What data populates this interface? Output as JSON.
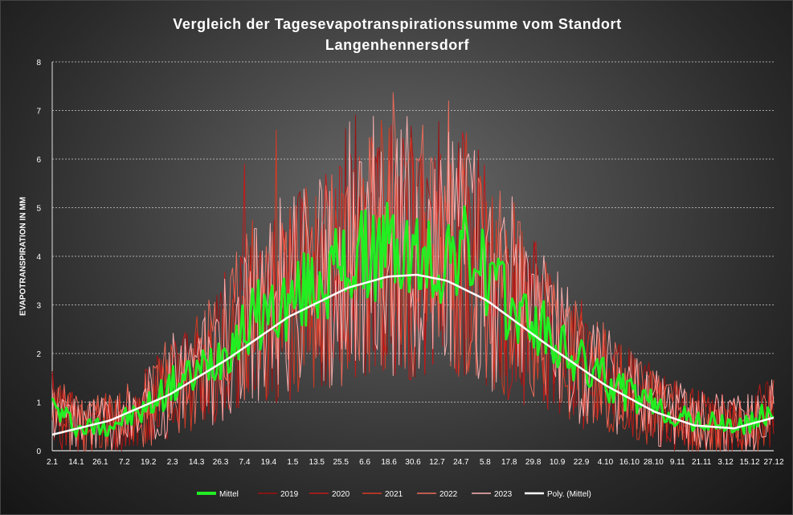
{
  "chart_data": {
    "type": "line",
    "title_lines": [
      "Vergleich der Tagesevapotranspirationssumme vom Standort",
      "Langenhennersdorf"
    ],
    "ylabel": "EVAPOTRANSPIRATION IN MM",
    "xlabel": "",
    "ylim": [
      0,
      8
    ],
    "yticks": [
      "0",
      "1",
      "2",
      "3",
      "4",
      "5",
      "6",
      "7",
      "8"
    ],
    "xticks": [
      "2.1",
      "14.1",
      "26.1",
      "7.2",
      "19.2",
      "2.3",
      "14.3",
      "26.3",
      "7.4",
      "19.4",
      "1.5",
      "13.5",
      "25.5",
      "6.6",
      "18.6",
      "30.6",
      "12.7",
      "24.7",
      "5.8",
      "17.8",
      "29.8",
      "10.9",
      "22.9",
      "4.10",
      "16.10",
      "28.10",
      "9.11",
      "21.11",
      "3.12",
      "15.12",
      "27.12"
    ],
    "grid": "horizontal dotted",
    "legend_position": "bottom",
    "days_range": [
      1,
      365
    ],
    "series": [
      {
        "name": "Mittel",
        "color": "#22ee22",
        "kind": "mean",
        "values": [
          [
            1,
            0.9
          ],
          [
            15,
            0.45
          ],
          [
            30,
            0.55
          ],
          [
            45,
            0.75
          ],
          [
            60,
            1.3
          ],
          [
            75,
            1.6
          ],
          [
            90,
            2.2
          ],
          [
            105,
            2.8
          ],
          [
            120,
            3.0
          ],
          [
            135,
            3.5
          ],
          [
            150,
            3.8
          ],
          [
            160,
            4.0
          ],
          [
            170,
            4.2
          ],
          [
            180,
            4.0
          ],
          [
            195,
            3.8
          ],
          [
            205,
            4.2
          ],
          [
            215,
            3.9
          ],
          [
            230,
            3.0
          ],
          [
            245,
            2.6
          ],
          [
            260,
            2.0
          ],
          [
            275,
            1.6
          ],
          [
            290,
            1.2
          ],
          [
            305,
            0.9
          ],
          [
            320,
            0.65
          ],
          [
            335,
            0.55
          ],
          [
            350,
            0.5
          ],
          [
            365,
            0.8
          ]
        ]
      },
      {
        "name": "2019",
        "color": "#a01010",
        "kind": "daily",
        "seed": 11
      },
      {
        "name": "2020",
        "color": "#c41818",
        "kind": "daily",
        "seed": 23
      },
      {
        "name": "2021",
        "color": "#d83a22",
        "kind": "daily",
        "seed": 37
      },
      {
        "name": "2022",
        "color": "#f06a5a",
        "kind": "daily",
        "seed": 51
      },
      {
        "name": "2023",
        "color": "#ffb3b3",
        "kind": "daily",
        "seed": 67
      },
      {
        "name": "Poly. (Mittel)",
        "color": "#ffffff",
        "kind": "trend",
        "values": [
          [
            1,
            0.33
          ],
          [
            30,
            0.62
          ],
          [
            60,
            1.15
          ],
          [
            90,
            1.9
          ],
          [
            120,
            2.75
          ],
          [
            150,
            3.35
          ],
          [
            170,
            3.58
          ],
          [
            185,
            3.62
          ],
          [
            200,
            3.5
          ],
          [
            220,
            3.1
          ],
          [
            250,
            2.2
          ],
          [
            280,
            1.35
          ],
          [
            305,
            0.8
          ],
          [
            325,
            0.52
          ],
          [
            345,
            0.46
          ],
          [
            365,
            0.68
          ]
        ]
      }
    ],
    "peaks": {
      "2022": [
        [
          201,
          7.2
        ],
        [
          188,
          6.7
        ]
      ],
      "2021": [
        [
          167,
          6.8
        ],
        [
          114,
          6.6
        ]
      ],
      "2020": [
        [
          98,
          5.9
        ],
        [
          172,
          6.7
        ]
      ],
      "2023": [
        [
          210,
          6.0
        ],
        [
          116,
          5.2
        ]
      ]
    }
  }
}
